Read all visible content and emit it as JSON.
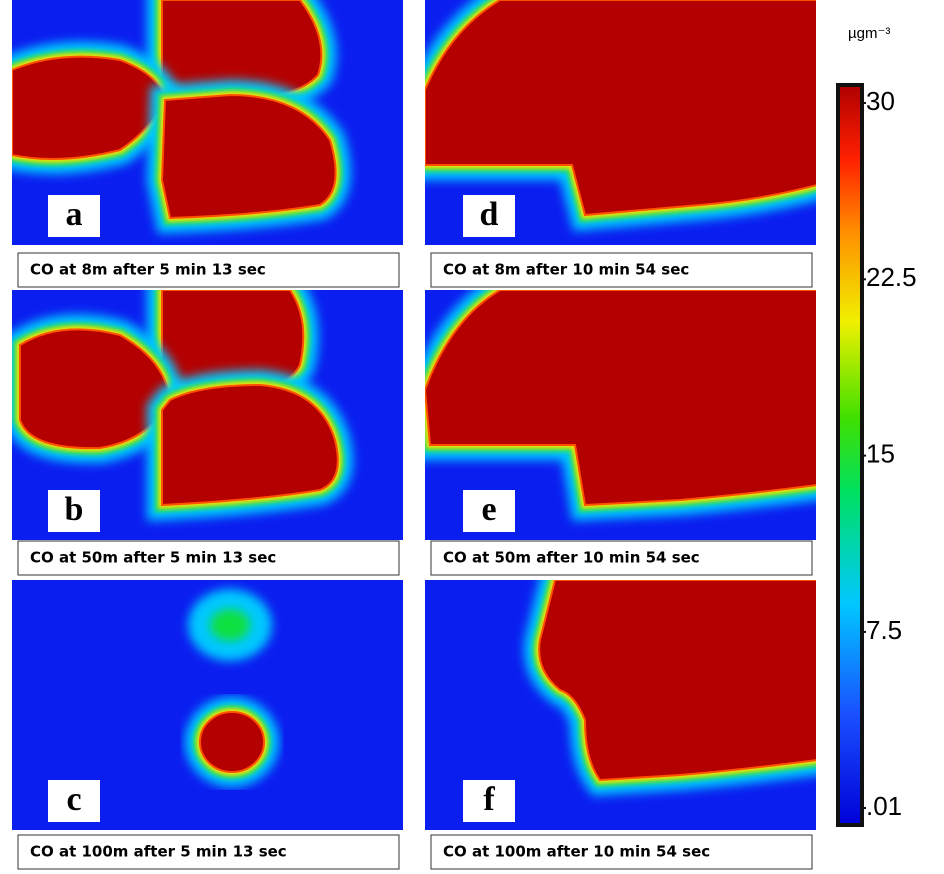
{
  "panels": [
    {
      "letter": "a",
      "caption": "CO at 8m after 5 min 13 sec"
    },
    {
      "letter": "b",
      "caption": "CO at 50m after 5 min 13 sec"
    },
    {
      "letter": "c",
      "caption": "CO at 100m after 5 min 13 sec"
    },
    {
      "letter": "d",
      "caption": "CO at 8m after 10 min 54 sec"
    },
    {
      "letter": "e",
      "caption": "CO at 50m after 10 min 54 sec"
    },
    {
      "letter": "f",
      "caption": "CO at 100m after 10 min 54 sec"
    }
  ],
  "colorbar": {
    "unit": "µgm⁻³",
    "range": [
      0.01,
      30
    ],
    "ticks": [
      30,
      22.5,
      15,
      7.5,
      {
        "value": 0.01,
        "label": ".01"
      }
    ]
  }
}
